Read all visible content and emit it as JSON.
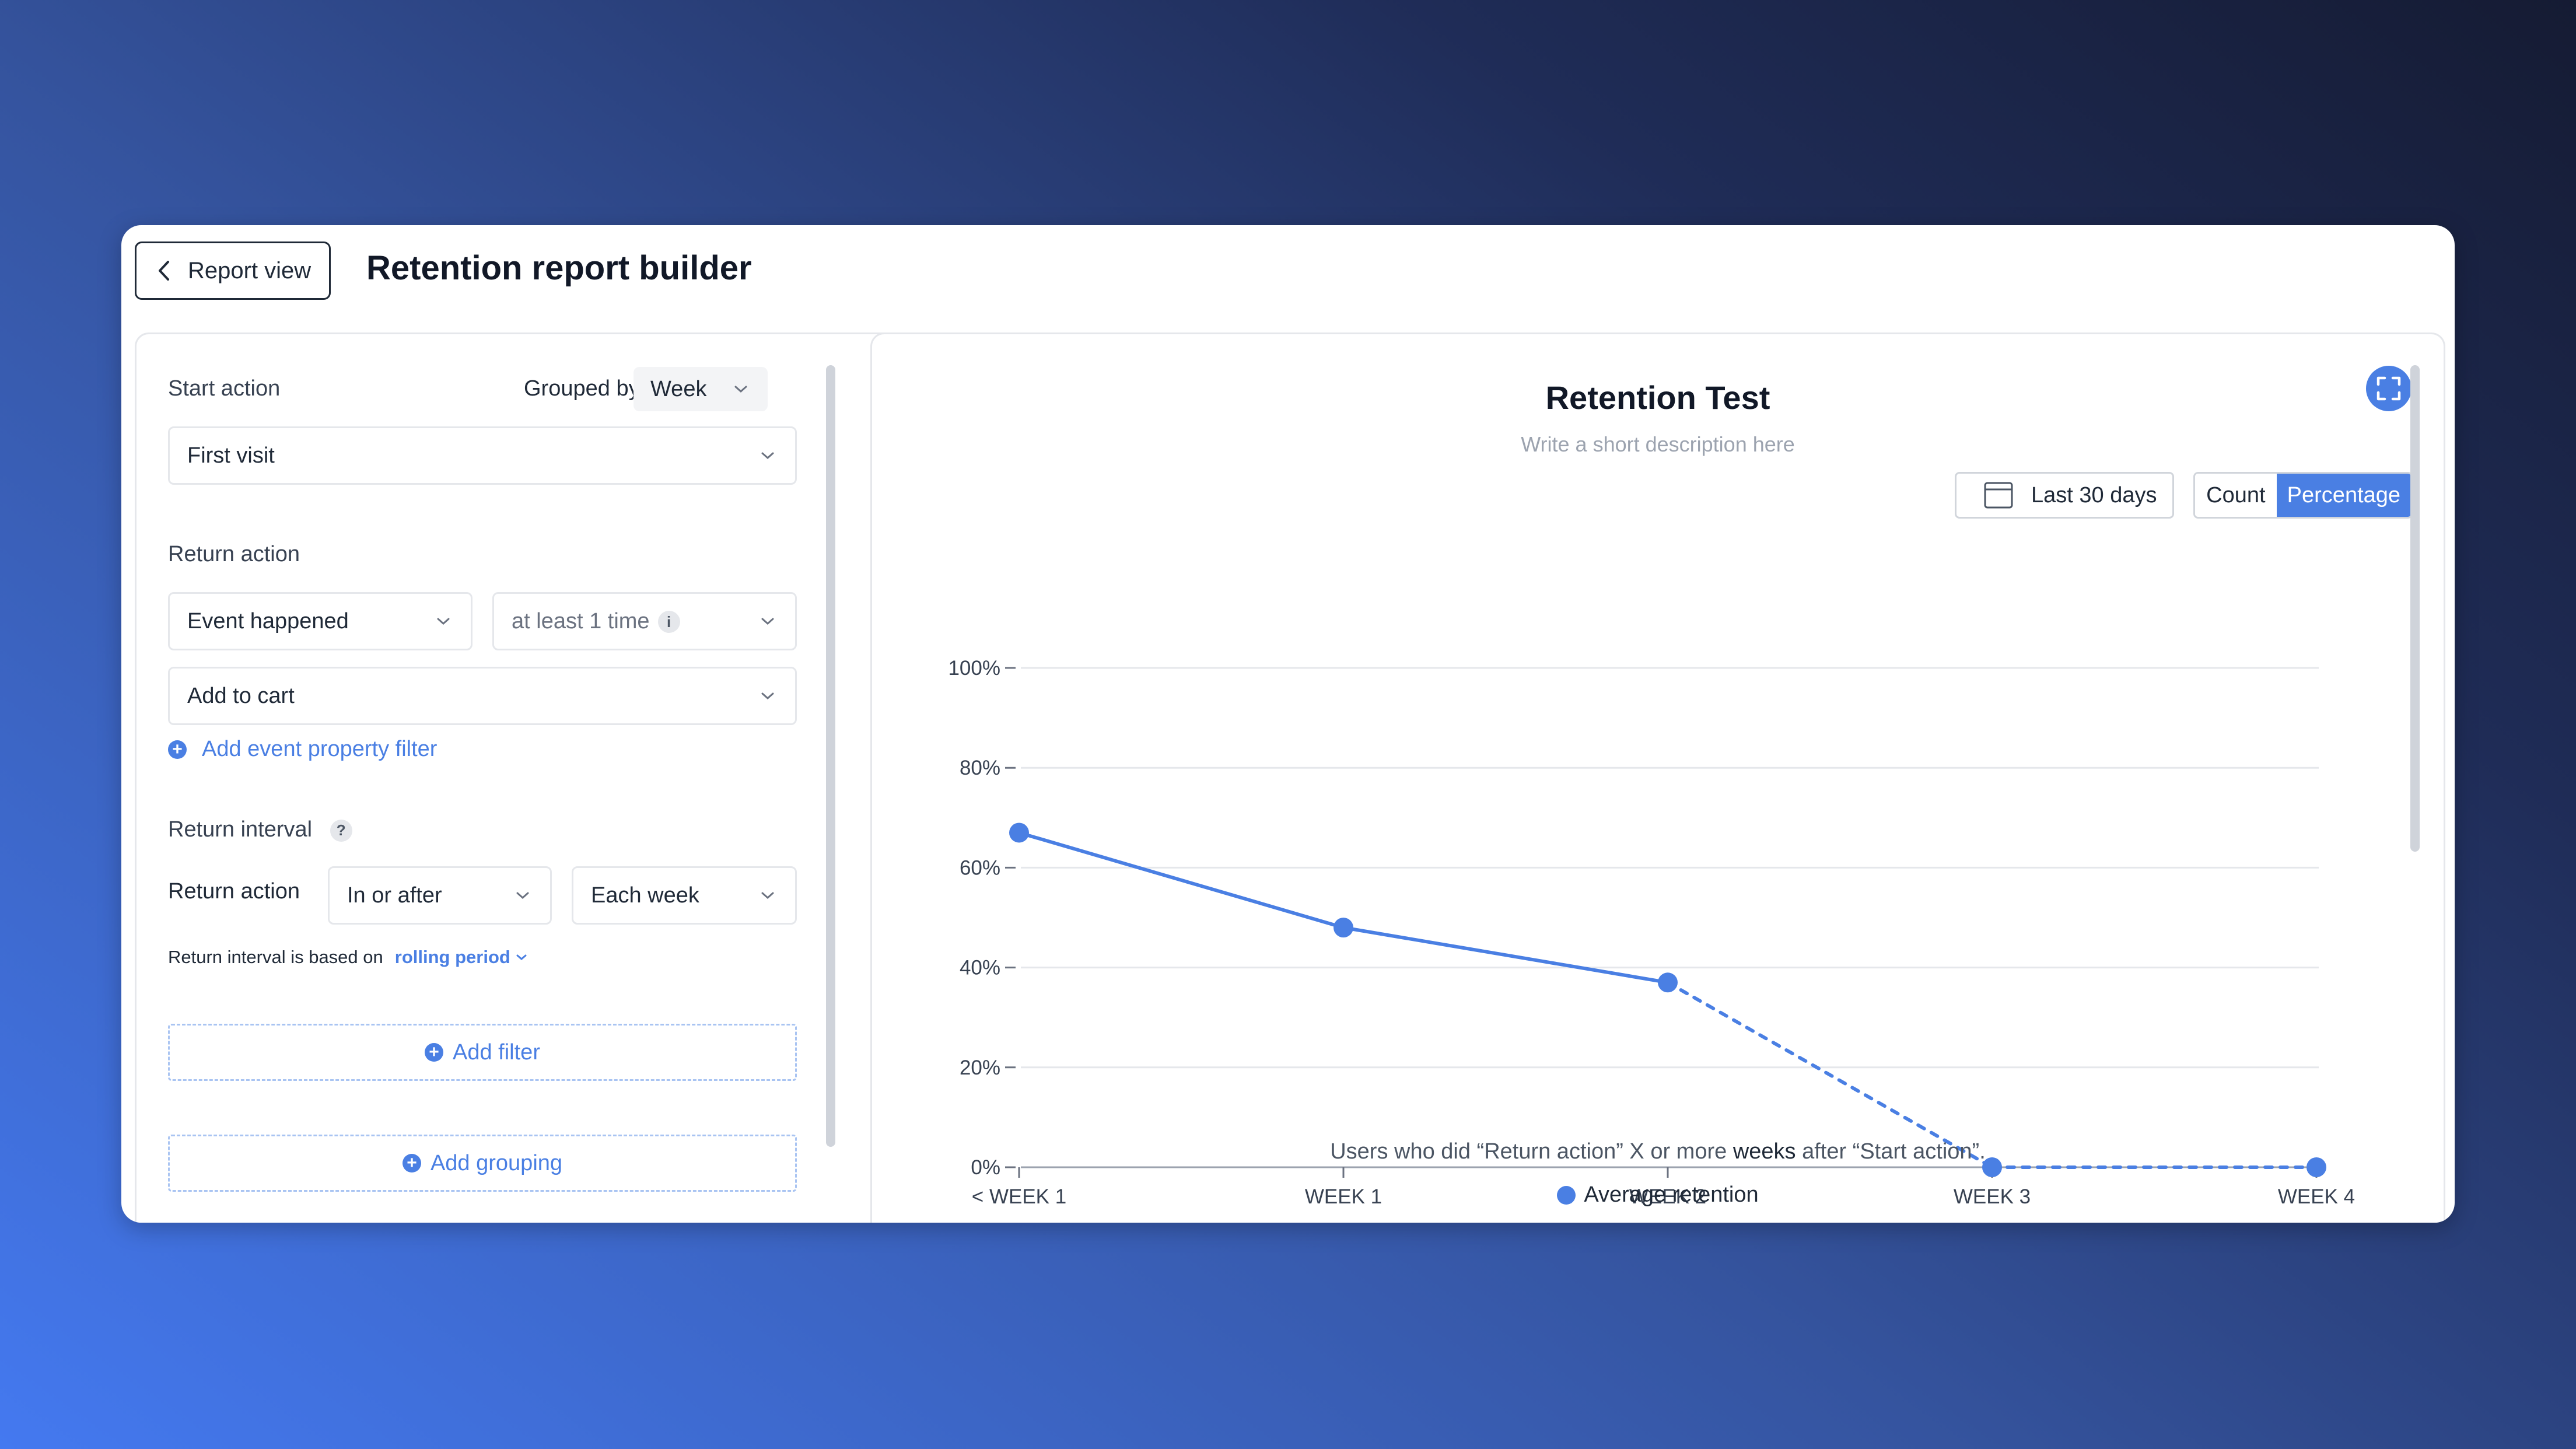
{
  "header": {
    "back_label": "Report view",
    "title": "Retention report builder"
  },
  "builder": {
    "start_action_label": "Start action",
    "grouped_by_label": "Grouped by:",
    "grouped_by_value": "Week",
    "start_action_value": "First visit",
    "return_action_label": "Return action",
    "event_condition_value": "Event happened",
    "frequency_value": "at least 1 time",
    "event_value": "Add to cart",
    "add_property_filter": "Add event property filter",
    "return_interval_label": "Return interval",
    "return_interval_help": "?",
    "return_action_row_label": "Return action",
    "interval_mode_value": "In or after",
    "interval_period_value": "Each week",
    "interval_note": "Return interval is based on",
    "interval_basis_link": "rolling period",
    "add_filter": "Add filter",
    "add_grouping": "Add grouping"
  },
  "chart_panel": {
    "date_range": "Last 30 days",
    "toggle": {
      "count": "Count",
      "percentage": "Percentage",
      "active": "percentage"
    },
    "colors": {
      "accent": "#4a7fe3",
      "grid": "#e5e7eb",
      "axis": "#9ca3af"
    }
  },
  "chart_data": {
    "type": "line",
    "title": "Retention Test",
    "subtitle": "Write a short description here",
    "categories": [
      "< WEEK 1",
      "WEEK 1",
      "WEEK 2",
      "WEEK 3",
      "WEEK 4"
    ],
    "y_ticks": [
      "0%",
      "20%",
      "40%",
      "60%",
      "80%",
      "100%"
    ],
    "ylim": [
      0,
      100
    ],
    "series": [
      {
        "name": "Average retention",
        "values": [
          67,
          48,
          37,
          0,
          0
        ],
        "solid_until_index": 2
      }
    ],
    "caption_before": "Users who did “Return action” X or more ",
    "caption_bold": "weeks",
    "caption_after": " after “Start action”.",
    "legend_position": "bottom",
    "grid": true
  }
}
